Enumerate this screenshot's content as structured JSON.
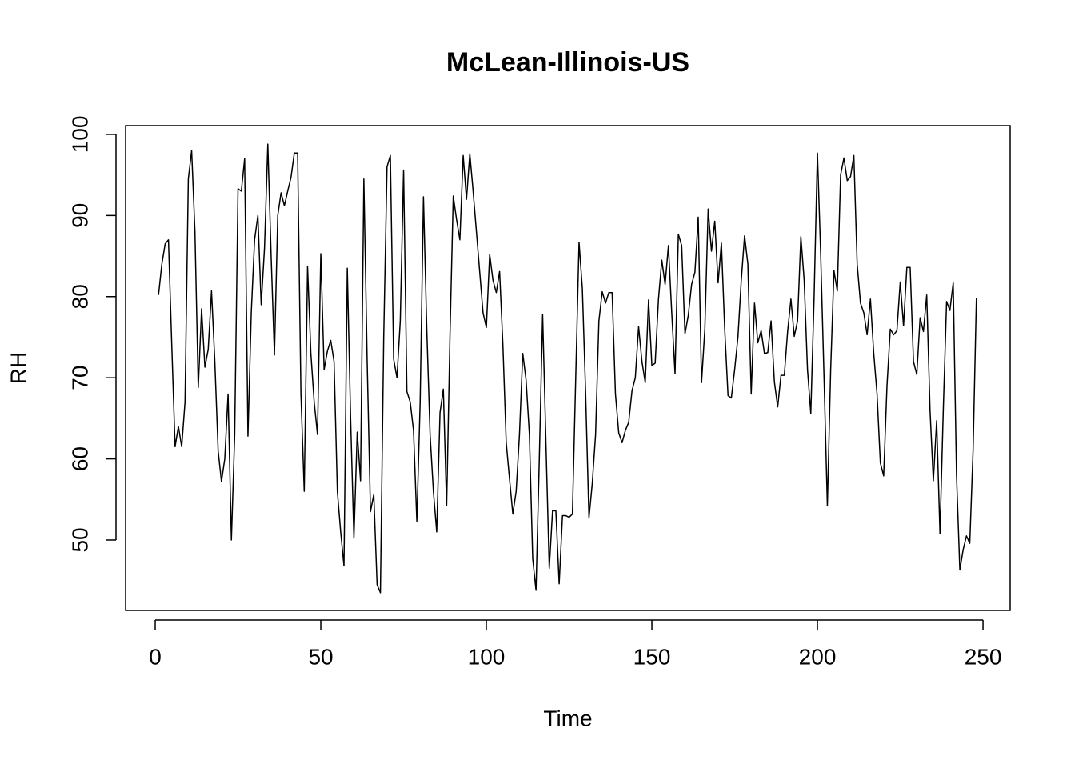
{
  "chart_data": {
    "type": "line",
    "title": "McLean-Illinois-US",
    "x_label": "Time",
    "y_label": "RH",
    "color": "#000000",
    "x": [
      1,
      2,
      3,
      4,
      5,
      6,
      7,
      8,
      9,
      10,
      11,
      12,
      13,
      14,
      15,
      16,
      17,
      18,
      19,
      20,
      21,
      22,
      23,
      24,
      25,
      26,
      27,
      28,
      29,
      30,
      31,
      32,
      33,
      34,
      35,
      36,
      37,
      38,
      39,
      40,
      41,
      42,
      43,
      44,
      45,
      46,
      47,
      48,
      49,
      50,
      51,
      52,
      53,
      54,
      55,
      56,
      57,
      58,
      59,
      60,
      61,
      62,
      63,
      64,
      65,
      66,
      67,
      68,
      69,
      70,
      71,
      72,
      73,
      74,
      75,
      76,
      77,
      78,
      79,
      80,
      81,
      82,
      83,
      84,
      85,
      86,
      87,
      88,
      89,
      90,
      91,
      92,
      93,
      94,
      95,
      96,
      97,
      98,
      99,
      100,
      101,
      102,
      103,
      104,
      105,
      106,
      107,
      108,
      109,
      110,
      111,
      112,
      113,
      114,
      115,
      116,
      117,
      118,
      119,
      120,
      121,
      122,
      123,
      124,
      125,
      126,
      127,
      128,
      129,
      130,
      131,
      132,
      133,
      134,
      135,
      136,
      137,
      138,
      139,
      140,
      141,
      142,
      143,
      144,
      145,
      146,
      147,
      148,
      149,
      150,
      151,
      152,
      153,
      154,
      155,
      156,
      157,
      158,
      159,
      160,
      161,
      162,
      163,
      164,
      165,
      166,
      167,
      168,
      169,
      170,
      171,
      172,
      173,
      174,
      175,
      176,
      177,
      178,
      179,
      180,
      181,
      182,
      183,
      184,
      185,
      186,
      187,
      188,
      189,
      190,
      191,
      192,
      193,
      194,
      195,
      196,
      197,
      198,
      199,
      200,
      201,
      202,
      203,
      204,
      205,
      206,
      207,
      208,
      209,
      210,
      211,
      212,
      213,
      214,
      215,
      216,
      217,
      218,
      219,
      220,
      221,
      222,
      223,
      224,
      225,
      226,
      227,
      228,
      229,
      230,
      231,
      232,
      233,
      234,
      235,
      236,
      237,
      238,
      239,
      240,
      241,
      242,
      243,
      244,
      245,
      246,
      247,
      248
    ],
    "values": [
      80.2,
      84,
      86.5,
      87,
      74,
      61.5,
      64,
      61.5,
      67,
      94.5,
      98,
      88,
      68.8,
      78.5,
      71.3,
      73.5,
      80.7,
      72,
      61,
      57.2,
      60,
      68,
      50,
      63,
      93.3,
      93,
      97,
      62.8,
      78,
      87,
      90,
      79,
      86,
      98.8,
      85,
      72.8,
      90,
      92.8,
      91.2,
      93,
      94.7,
      97.7,
      97.7,
      68,
      56,
      83.7,
      73,
      67,
      63,
      85.3,
      71,
      73.3,
      74.6,
      72,
      56,
      51,
      46.8,
      83.5,
      65,
      50.2,
      63.3,
      57.3,
      94.5,
      72,
      53.5,
      55.6,
      44.5,
      43.5,
      75,
      96,
      97.4,
      72.3,
      70,
      77,
      95.6,
      68.3,
      67,
      63.5,
      52.3,
      67,
      92.3,
      76,
      63,
      56,
      51,
      65.7,
      68.6,
      54.2,
      75,
      92.4,
      89.5,
      87,
      97.4,
      92,
      97.6,
      93,
      88,
      83,
      78,
      76.2,
      85.2,
      82,
      80.5,
      83.1,
      74,
      62,
      57.5,
      53.2,
      56,
      63,
      73,
      69.7,
      63,
      47.7,
      43.8,
      60,
      77.8,
      62,
      46.5,
      53.6,
      53.6,
      44.6,
      53,
      53,
      52.8,
      53.2,
      70,
      86.7,
      81,
      68,
      52.7,
      57,
      63,
      77,
      80.6,
      79.2,
      80.5,
      80.5,
      68,
      63.2,
      62,
      63.5,
      64.5,
      68.4,
      70,
      76.3,
      72,
      69.4,
      79.6,
      71.5,
      71.8,
      79.7,
      84.5,
      81.5,
      86.3,
      78,
      70.5,
      87.7,
      86.3,
      75.4,
      77.7,
      81.5,
      83,
      89.8,
      69.4,
      76,
      90.8,
      85.6,
      89.3,
      81.7,
      86.6,
      76,
      67.8,
      67.5,
      71,
      75,
      82,
      87.5,
      84,
      68,
      79.2,
      74.3,
      75.8,
      73,
      73.1,
      77,
      69.5,
      66.4,
      70.3,
      70.3,
      75.7,
      79.7,
      75.1,
      77,
      87.4,
      82,
      71,
      65.6,
      80,
      97.7,
      85,
      70,
      54.2,
      71,
      83.2,
      80.7,
      95,
      97.1,
      94.3,
      94.8,
      97.4,
      84,
      79.2,
      78,
      75.3,
      79.7,
      73,
      68,
      59.5,
      57.9,
      69,
      76,
      75.3,
      75.8,
      81.8,
      76.4,
      83.6,
      83.6,
      72,
      70.4,
      77.4,
      75.7,
      80.2,
      66,
      57.3,
      64.7,
      50.8,
      66,
      79.4,
      78.3,
      81.7,
      58,
      46.3,
      48.8,
      50.5,
      49.6,
      61,
      79.8
    ],
    "xlim": [
      -8.94,
      258.2
    ],
    "ylim": [
      41.32,
      101.08
    ],
    "xticks": [
      0,
      50,
      100,
      150,
      200,
      250
    ],
    "yticks": [
      50,
      60,
      70,
      80,
      90,
      100
    ]
  }
}
